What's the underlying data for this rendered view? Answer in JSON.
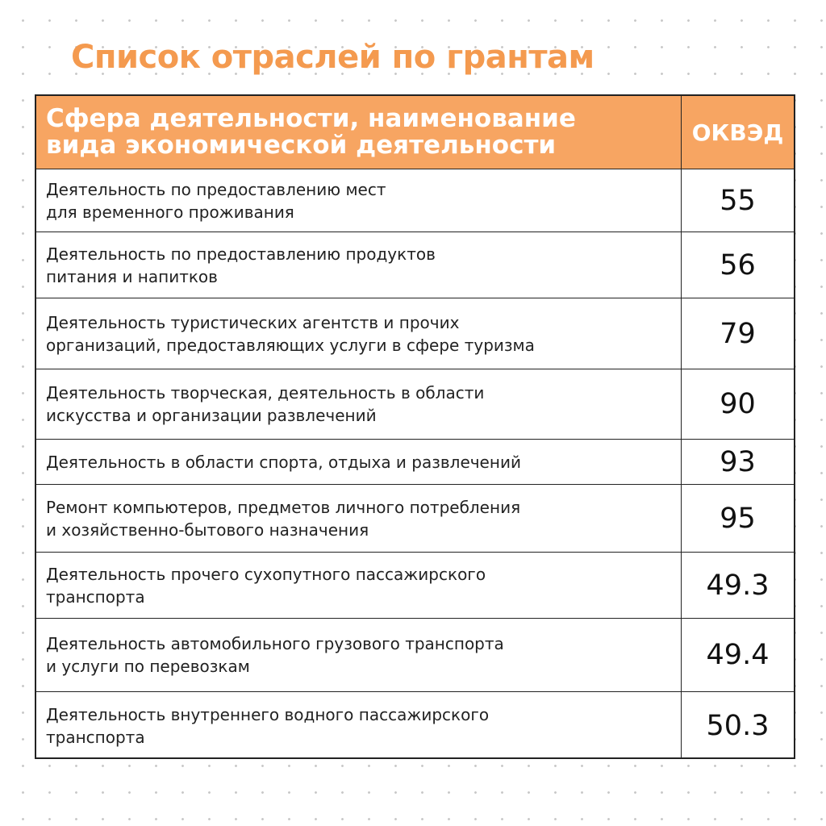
{
  "header": {
    "title": "Список отраслей по грантам"
  },
  "table": {
    "columns": [
      [
        "Сфера деятельности, наименование",
        "вида экономической деятельности"
      ],
      "ОКВЭД"
    ],
    "rows": [
      {
        "activity": [
          "Деятельность по предоставлению мест",
          "для временного проживания"
        ],
        "code": "55"
      },
      {
        "activity": [
          "Деятельность по предоставлению продуктов",
          "питания и напитков"
        ],
        "code": "56"
      },
      {
        "activity": [
          "Деятельность туристических агентств и прочих",
          "организаций, предоставляющих услуги в сфере туризма"
        ],
        "code": "79"
      },
      {
        "activity": [
          "Деятельность творческая, деятельность в области",
          "искусства и организации развлечений"
        ],
        "code": "90"
      },
      {
        "activity": [
          "Деятельность в области спорта, отдыха и развлечений"
        ],
        "code": "93"
      },
      {
        "activity": [
          "Ремонт компьютеров, предметов личного потребления",
          "и хозяйственно-бытового назначения"
        ],
        "code": "95"
      },
      {
        "activity": [
          "Деятельность прочего сухопутного пассажирского",
          "транспорта"
        ],
        "code": "49.3"
      },
      {
        "activity": [
          "Деятельность автомобильного грузового транспорта",
          "и услуги по перевозкам"
        ],
        "code": "49.4"
      },
      {
        "activity": [
          "Деятельность внутреннего водного пассажирского",
          "транспорта"
        ],
        "code": "50.3"
      }
    ]
  }
}
